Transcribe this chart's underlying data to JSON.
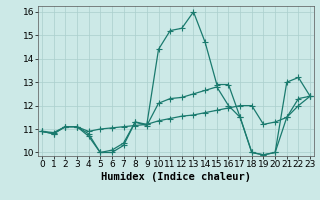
{
  "xlabel": "Humidex (Indice chaleur)",
  "xlim": [
    -0.3,
    23.3
  ],
  "ylim": [
    9.85,
    16.25
  ],
  "yticks": [
    10,
    11,
    12,
    13,
    14,
    15,
    16
  ],
  "xticks": [
    0,
    1,
    2,
    3,
    4,
    5,
    6,
    7,
    8,
    9,
    10,
    11,
    12,
    13,
    14,
    15,
    16,
    17,
    18,
    19,
    20,
    21,
    22,
    23
  ],
  "bg_color": "#cce9e7",
  "grid_color": "#aacfcd",
  "line_color": "#1a7a6e",
  "curves": [
    {
      "x": [
        0,
        1,
        2,
        3,
        4,
        5,
        6,
        7,
        8,
        9,
        10,
        11,
        12,
        13,
        14,
        15,
        16,
        17,
        18,
        19,
        20,
        21,
        22,
        23
      ],
      "y": [
        10.9,
        10.8,
        11.1,
        11.1,
        10.8,
        10.0,
        10.0,
        10.3,
        11.3,
        11.2,
        14.4,
        15.2,
        15.3,
        16.0,
        14.7,
        12.9,
        12.9,
        11.5,
        10.0,
        9.9,
        10.0,
        13.0,
        13.2,
        12.4
      ]
    },
    {
      "x": [
        0,
        1,
        2,
        3,
        4,
        5,
        6,
        7,
        8,
        9,
        10,
        11,
        12,
        13,
        14,
        15,
        16,
        17,
        18,
        19,
        20,
        21,
        22,
        23
      ],
      "y": [
        10.9,
        10.85,
        11.1,
        11.1,
        10.9,
        11.0,
        11.05,
        11.1,
        11.15,
        11.2,
        11.35,
        11.45,
        11.55,
        11.6,
        11.7,
        11.8,
        11.9,
        12.0,
        12.0,
        11.2,
        11.3,
        11.5,
        12.3,
        12.4
      ]
    },
    {
      "x": [
        0,
        1,
        2,
        3,
        4,
        5,
        6,
        7,
        8,
        9,
        10,
        11,
        12,
        13,
        14,
        15,
        16,
        17,
        18,
        19,
        20,
        21,
        22,
        23
      ],
      "y": [
        10.9,
        10.8,
        11.1,
        11.1,
        10.7,
        10.0,
        10.1,
        10.4,
        11.3,
        11.15,
        12.1,
        12.3,
        12.35,
        12.5,
        12.65,
        12.8,
        12.0,
        11.5,
        10.0,
        9.9,
        10.0,
        11.5,
        12.0,
        12.4
      ]
    }
  ],
  "fontsize_xlabel": 7.5,
  "fontsize_ticks": 6.5,
  "lw": 0.9,
  "markersize": 2.2
}
